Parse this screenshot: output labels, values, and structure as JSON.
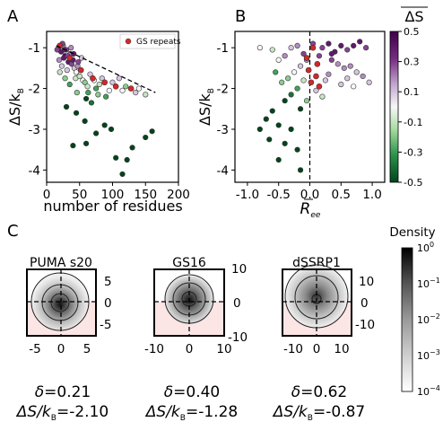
{
  "panel_labels": {
    "a": "A",
    "b": "B",
    "c": "C"
  },
  "chart_data": [
    {
      "type": "scatter",
      "panel": "A",
      "xlabel": "number of residues",
      "ylabel": "ΔS/k_B",
      "ylabel_parts": {
        "main": "ΔS/k",
        "sub": "B"
      },
      "xlim": [
        0,
        200
      ],
      "ylim": [
        -4.3,
        -0.6
      ],
      "xticks": [
        "0",
        "50",
        "100",
        "150",
        "200"
      ],
      "xtick_values": [
        0,
        50,
        100,
        150,
        200
      ],
      "yticks": [
        "-1",
        "-2",
        "-3",
        "-4"
      ],
      "ytick_values": [
        -1,
        -2,
        -3,
        -4
      ],
      "legend": {
        "label": "GS repeats",
        "color": "#d62728",
        "placement": "top-right"
      },
      "fit_line": {
        "x": [
          15,
          165
        ],
        "y": [
          -0.95,
          -2.1
        ],
        "style": "dashed"
      },
      "series": [
        {
          "name": "GS repeats",
          "color": "#d62728",
          "points": [
            [
              20,
              -0.95
            ],
            [
              35,
              -1.25
            ],
            [
              52,
              -1.55
            ],
            [
              70,
              -1.75
            ],
            [
              88,
              -1.85
            ],
            [
              105,
              -1.95
            ],
            [
              128,
              -2.0
            ]
          ]
        },
        {
          "name": "",
          "points": [
            [
              18,
              -1.0,
              0.3
            ],
            [
              22,
              -1.1,
              0.4
            ],
            [
              25,
              -0.95,
              0.2
            ],
            [
              28,
              -1.2,
              0.5
            ],
            [
              30,
              -1.05,
              0.3
            ],
            [
              33,
              -1.35,
              0.4
            ],
            [
              36,
              -1.15,
              0.2
            ],
            [
              38,
              -1.4,
              0.3
            ],
            [
              40,
              -1.3,
              0.4
            ],
            [
              42,
              -1.5,
              0.1
            ],
            [
              45,
              -1.6,
              0.0
            ],
            [
              47,
              -1.45,
              0.2
            ],
            [
              26,
              -1.25,
              0.4
            ],
            [
              24,
              -0.9,
              0.3
            ],
            [
              31,
              -1.55,
              0.1
            ],
            [
              44,
              -1.75,
              -0.1
            ],
            [
              50,
              -1.7,
              -0.1
            ],
            [
              55,
              -1.8,
              0.0
            ],
            [
              58,
              -1.85,
              -0.2
            ],
            [
              62,
              -1.95,
              -0.1
            ],
            [
              66,
              -1.65,
              0.1
            ],
            [
              72,
              -1.8,
              0.0
            ],
            [
              75,
              -2.0,
              -0.3
            ],
            [
              80,
              -1.9,
              -0.1
            ],
            [
              84,
              -1.75,
              0.1
            ],
            [
              90,
              -2.2,
              -0.3
            ],
            [
              95,
              -2.05,
              0.0
            ],
            [
              100,
              -1.85,
              0.1
            ],
            [
              110,
              -1.75,
              0.1
            ],
            [
              115,
              -2.05,
              0.0
            ],
            [
              120,
              -1.95,
              -0.2
            ],
            [
              135,
              -2.1,
              0.1
            ],
            [
              140,
              -2.0,
              0.0
            ],
            [
              150,
              -2.15,
              -0.1
            ],
            [
              68,
              -2.35,
              -0.4
            ],
            [
              60,
              -2.25,
              -0.5
            ],
            [
              20,
              -1.6,
              -0.1
            ],
            [
              28,
              -1.75,
              -0.2
            ],
            [
              35,
              -1.9,
              -0.3
            ],
            [
              30,
              -2.45,
              -0.5
            ],
            [
              45,
              -2.6,
              -0.5
            ],
            [
              58,
              -2.8,
              -0.5
            ],
            [
              88,
              -2.9,
              -0.5
            ],
            [
              98,
              -3.0,
              -0.5
            ],
            [
              75,
              -3.1,
              -0.5
            ],
            [
              160,
              -3.05,
              -0.5
            ],
            [
              150,
              -3.2,
              -0.5
            ],
            [
              60,
              -3.35,
              -0.5
            ],
            [
              130,
              -3.45,
              -0.5
            ],
            [
              105,
              -3.7,
              -0.5
            ],
            [
              122,
              -3.75,
              -0.5
            ],
            [
              40,
              -3.4,
              -0.5
            ],
            [
              115,
              -4.1,
              -0.5
            ],
            [
              16,
              -1.05,
              0.3
            ],
            [
              19,
              -1.3,
              0.2
            ],
            [
              23,
              -1.45,
              0.1
            ],
            [
              27,
              -1.05,
              0.4
            ],
            [
              32,
              -1.2,
              0.3
            ],
            [
              37,
              -1.0,
              0.2
            ],
            [
              41,
              -1.15,
              0.4
            ],
            [
              48,
              -1.35,
              0.3
            ],
            [
              53,
              -1.25,
              0.1
            ],
            [
              46,
              -2.1,
              -0.2
            ],
            [
              63,
              -2.1,
              -0.3
            ],
            [
              78,
              -2.15,
              -0.2
            ]
          ]
        }
      ]
    },
    {
      "type": "scatter",
      "panel": "B",
      "xlabel": "R̄_ee",
      "xlabel_parts": {
        "main": "R",
        "sub": "ee"
      },
      "ylabel": "ΔS/k_B",
      "ylabel_parts": {
        "main": "ΔS/k",
        "sub": "B"
      },
      "xlim": [
        -1.2,
        1.2
      ],
      "ylim": [
        -4.3,
        -0.6
      ],
      "xticks": [
        "-1.0",
        "-0.5",
        "0.0",
        "0.5",
        "1.0"
      ],
      "xtick_values": [
        -1.0,
        -0.5,
        0.0,
        0.5,
        1.0
      ],
      "yticks": [
        "-1",
        "-2",
        "-3",
        "-4"
      ],
      "ytick_values": [
        -1,
        -2,
        -3,
        -4
      ],
      "vline": {
        "x": 0,
        "style": "dashed"
      },
      "colorbar": {
        "label": "ΔS̄",
        "label_parts": {
          "main": "ΔS"
        },
        "ticks": [
          "0.5",
          "0.3",
          "0.1",
          "-0.1",
          "-0.3",
          "-0.5"
        ],
        "tick_values": [
          0.5,
          0.3,
          0.1,
          -0.1,
          -0.3,
          -0.5
        ],
        "range": [
          -0.5,
          0.5
        ],
        "colors": [
          "#00441b",
          "#2a924a",
          "#a6dba0",
          "#f7f7f7",
          "#c2a5cf",
          "#762a83",
          "#40004b"
        ]
      },
      "series": [
        {
          "name": "GS repeats",
          "color": "#d62728",
          "points": [
            [
              0.05,
              -1.0
            ],
            [
              -0.05,
              -1.25
            ],
            [
              0.12,
              -1.4
            ],
            [
              -0.02,
              -1.55
            ],
            [
              0.1,
              -1.7
            ],
            [
              0.02,
              -1.85
            ],
            [
              0.15,
              -1.95
            ]
          ]
        },
        {
          "name": "",
          "points": [
            [
              -0.3,
              -1.0,
              0.1
            ],
            [
              -0.4,
              -1.2,
              0.2
            ],
            [
              -0.2,
              -0.95,
              0.2
            ],
            [
              -0.1,
              -1.15,
              0.3
            ],
            [
              -0.6,
              -1.05,
              -0.1
            ],
            [
              -0.5,
              -1.3,
              0.0
            ],
            [
              -0.15,
              -1.45,
              0.1
            ],
            [
              -0.05,
              -1.3,
              0.2
            ],
            [
              0.2,
              -1.0,
              0.3
            ],
            [
              0.3,
              -0.9,
              0.4
            ],
            [
              0.4,
              -1.1,
              0.4
            ],
            [
              0.5,
              -0.95,
              0.4
            ],
            [
              0.6,
              -1.05,
              0.3
            ],
            [
              0.7,
              -0.95,
              0.4
            ],
            [
              0.8,
              -0.85,
              0.4
            ],
            [
              0.9,
              -1.0,
              0.3
            ],
            [
              0.35,
              -1.3,
              0.3
            ],
            [
              0.45,
              -1.4,
              0.2
            ],
            [
              0.55,
              -1.5,
              0.2
            ],
            [
              0.65,
              -1.45,
              0.2
            ],
            [
              0.75,
              -1.6,
              0.1
            ],
            [
              0.85,
              -1.7,
              0.2
            ],
            [
              0.95,
              -1.85,
              0.1
            ],
            [
              0.6,
              -1.75,
              0.1
            ],
            [
              0.5,
              -1.9,
              0.1
            ],
            [
              0.7,
              -1.95,
              0.0
            ],
            [
              0.3,
              -1.65,
              0.2
            ],
            [
              0.25,
              -1.8,
              0.1
            ],
            [
              -0.25,
              -1.6,
              0.0
            ],
            [
              -0.35,
              -1.75,
              -0.2
            ],
            [
              -0.45,
              -1.85,
              -0.2
            ],
            [
              -0.2,
              -2.0,
              -0.3
            ],
            [
              -0.1,
              -1.8,
              -0.1
            ],
            [
              -0.55,
              -1.6,
              -0.3
            ],
            [
              -0.3,
              -2.15,
              -0.4
            ],
            [
              -0.4,
              -2.3,
              -0.5
            ],
            [
              -0.15,
              -2.5,
              -0.5
            ],
            [
              -0.6,
              -2.55,
              -0.5
            ],
            [
              -0.7,
              -2.75,
              -0.5
            ],
            [
              -0.5,
              -2.9,
              -0.5
            ],
            [
              -0.3,
              -3.0,
              -0.5
            ],
            [
              -0.8,
              -3.0,
              -0.5
            ],
            [
              -0.65,
              -3.25,
              -0.5
            ],
            [
              -0.4,
              -3.35,
              -0.5
            ],
            [
              -0.2,
              -3.5,
              -0.5
            ],
            [
              -0.5,
              -3.75,
              -0.5
            ],
            [
              -0.15,
              -4.0,
              -0.5
            ],
            [
              0.1,
              -2.05,
              0.1
            ],
            [
              0.2,
              -2.2,
              -0.1
            ],
            [
              -0.05,
              -2.3,
              -0.2
            ],
            [
              0.35,
              -1.15,
              0.4
            ],
            [
              0.15,
              -1.2,
              0.3
            ],
            [
              -0.8,
              -1.0,
              0.0
            ],
            [
              0.05,
              -0.9,
              0.3
            ]
          ]
        }
      ]
    },
    {
      "type": "heatmap",
      "panel": "C",
      "title": "Density",
      "colorbar": {
        "ticks": [
          "10^0",
          "10^-1",
          "10^-2",
          "10^-3",
          "10^-4"
        ],
        "tick_values": [
          0,
          -1,
          -2,
          -3,
          -4
        ],
        "colors": [
          "#000000",
          "#555555",
          "#9a9a9a",
          "#cfcfcf",
          "#ffffff"
        ]
      },
      "subplots": [
        {
          "title": "PUMA s20",
          "xticks": [
            "-5",
            "0",
            "5"
          ],
          "xtick_values": [
            -5,
            0,
            5
          ],
          "yticks": [
            "5",
            "0",
            "-5"
          ],
          "ytick_values": [
            5,
            0,
            -5
          ],
          "lim": [
            -7.5,
            7.5
          ],
          "delta_label": "δ",
          "delta": "=0.21",
          "dS_label": "ΔS/k",
          "dS_sub": "B",
          "dS": "=-2.10"
        },
        {
          "title": "GS16",
          "xticks": [
            "-10",
            "0",
            "10"
          ],
          "xtick_values": [
            -10,
            0,
            10
          ],
          "yticks": [
            "10",
            "0",
            "-10"
          ],
          "ytick_values": [
            10,
            0,
            -10
          ],
          "lim": [
            -10,
            10
          ],
          "delta_label": "δ",
          "delta": "=0.40",
          "dS_label": "ΔS/k",
          "dS_sub": "B",
          "dS": "=-1.28"
        },
        {
          "title": "dSSRP1",
          "xticks": [
            "-10",
            "0",
            "10"
          ],
          "xtick_values": [
            -10,
            0,
            10
          ],
          "yticks": [
            "10",
            "0",
            "-10"
          ],
          "ytick_values": [
            10,
            0,
            -10
          ],
          "lim": [
            -15,
            15
          ],
          "delta_label": "δ",
          "delta": "=0.62",
          "dS_label": "ΔS/k",
          "dS_sub": "B",
          "dS": "=-0.87"
        }
      ]
    }
  ]
}
